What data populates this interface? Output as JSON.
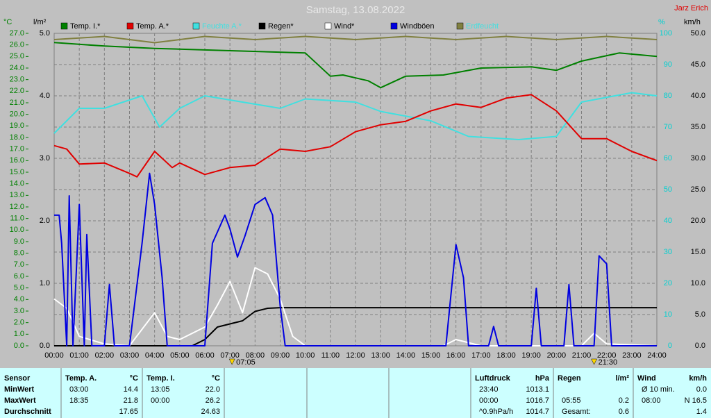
{
  "chart_data": {
    "type": "line",
    "title": "Samstag, 13.08.2022",
    "author": "Jarz Erich",
    "xlim": [
      0,
      24
    ],
    "xticks": [
      {
        "value": 0,
        "label": "00:00"
      },
      {
        "value": 1,
        "label": "01:00"
      },
      {
        "value": 2,
        "label": "02:00"
      },
      {
        "value": 3,
        "label": "03:00"
      },
      {
        "value": 4,
        "label": "04:00"
      },
      {
        "value": 5,
        "label": "05:00"
      },
      {
        "value": 6,
        "label": "06:00"
      },
      {
        "value": 7,
        "label": "07:00"
      },
      {
        "value": 8,
        "label": "08:00"
      },
      {
        "value": 9,
        "label": "09:00"
      },
      {
        "value": 10,
        "label": "10:00"
      },
      {
        "value": 11,
        "label": "11:00"
      },
      {
        "value": 12,
        "label": "12:00"
      },
      {
        "value": 13,
        "label": "13:00"
      },
      {
        "value": 14,
        "label": "14:00"
      },
      {
        "value": 15,
        "label": "15:00"
      },
      {
        "value": 16,
        "label": "16:00"
      },
      {
        "value": 17,
        "label": "17:00"
      },
      {
        "value": 18,
        "label": "18:00"
      },
      {
        "value": 19,
        "label": "19:00"
      },
      {
        "value": 20,
        "label": "20:00"
      },
      {
        "value": 21,
        "label": "21:00"
      },
      {
        "value": 22,
        "label": "22:00"
      },
      {
        "value": 23,
        "label": "23:00"
      },
      {
        "value": 24,
        "label": "24:00"
      }
    ],
    "grid": true,
    "axes": {
      "temp": {
        "unit": "°C",
        "side": "left",
        "color": "#008000",
        "lim": [
          0,
          27
        ],
        "ticks": [
          {
            "value": 0,
            "label": "0.0"
          },
          {
            "value": 1,
            "label": "1.0"
          },
          {
            "value": 2,
            "label": "2.0"
          },
          {
            "value": 3,
            "label": "3.0"
          },
          {
            "value": 4,
            "label": "4.0"
          },
          {
            "value": 5,
            "label": "5.0"
          },
          {
            "value": 6,
            "label": "6.0"
          },
          {
            "value": 7,
            "label": "7.0"
          },
          {
            "value": 8,
            "label": "8.0"
          },
          {
            "value": 9,
            "label": "9.0"
          },
          {
            "value": 10,
            "label": "10.0"
          },
          {
            "value": 11,
            "label": "11.0"
          },
          {
            "value": 12,
            "label": "12.0"
          },
          {
            "value": 13,
            "label": "13.0"
          },
          {
            "value": 14,
            "label": "14.0"
          },
          {
            "value": 15,
            "label": "15.0"
          },
          {
            "value": 16,
            "label": "16.0"
          },
          {
            "value": 17,
            "label": "17.0"
          },
          {
            "value": 18,
            "label": "18.0"
          },
          {
            "value": 19,
            "label": "19.0"
          },
          {
            "value": 20,
            "label": "20.0"
          },
          {
            "value": 21,
            "label": "21.0"
          },
          {
            "value": 22,
            "label": "22.0"
          },
          {
            "value": 23,
            "label": "23.0"
          },
          {
            "value": 24,
            "label": "24.0"
          },
          {
            "value": 25,
            "label": "25.0"
          },
          {
            "value": 26,
            "label": "26.0"
          },
          {
            "value": 27,
            "label": "27.0"
          }
        ]
      },
      "rain": {
        "unit": "l/m²",
        "side": "left",
        "color": "#000000",
        "lim": [
          0,
          5
        ],
        "ticks": [
          {
            "value": 0,
            "label": "0.0"
          },
          {
            "value": 1,
            "label": "1.0"
          },
          {
            "value": 2,
            "label": "2.0"
          },
          {
            "value": 3,
            "label": "3.0"
          },
          {
            "value": 4,
            "label": "4.0"
          },
          {
            "value": 5,
            "label": "5.0"
          }
        ]
      },
      "humidity": {
        "unit": "%",
        "side": "right",
        "color": "#00d0d0",
        "lim": [
          0,
          100
        ],
        "ticks": [
          0,
          10,
          20,
          30,
          40,
          50,
          60,
          70,
          80,
          90,
          100
        ]
      },
      "wind": {
        "unit": "km/h",
        "side": "right",
        "color": "#000000",
        "lim": [
          0,
          50
        ],
        "ticks": [
          {
            "value": 0,
            "label": "0.0"
          },
          {
            "value": 5,
            "label": "5.0"
          },
          {
            "value": 10,
            "label": "10.0"
          },
          {
            "value": 15,
            "label": "15.0"
          },
          {
            "value": 20,
            "label": "20.0"
          },
          {
            "value": 25,
            "label": "25.0"
          },
          {
            "value": 30,
            "label": "30.0"
          },
          {
            "value": 35,
            "label": "35.0"
          },
          {
            "value": 40,
            "label": "40.0"
          },
          {
            "value": 45,
            "label": "45.0"
          },
          {
            "value": 50,
            "label": "50.0"
          }
        ]
      }
    },
    "series": [
      {
        "name": "Temp. I.*",
        "color": "#008000",
        "axis": "temp",
        "x": [
          0,
          2,
          4,
          7,
          10,
          11,
          11.5,
          12.5,
          13,
          14,
          15.5,
          17,
          19,
          20,
          21,
          22.5,
          24
        ],
        "values": [
          26.2,
          25.9,
          25.7,
          25.5,
          25.3,
          23.3,
          23.4,
          22.9,
          22.3,
          23.3,
          23.4,
          24.0,
          24.1,
          23.8,
          24.6,
          25.3,
          25.0
        ]
      },
      {
        "name": "Temp. A.*",
        "color": "#e00000",
        "axis": "temp",
        "x": [
          0,
          0.5,
          1,
          2,
          3,
          3.3,
          4,
          4.7,
          5,
          6,
          7,
          8,
          9,
          10,
          11,
          12,
          13,
          14,
          15,
          16,
          17,
          18,
          19,
          20,
          21,
          22,
          23,
          24
        ],
        "values": [
          17.3,
          17.0,
          15.7,
          15.8,
          14.9,
          14.6,
          16.8,
          15.4,
          15.8,
          14.8,
          15.4,
          15.6,
          17.0,
          16.8,
          17.2,
          18.5,
          19.1,
          19.4,
          20.3,
          20.9,
          20.6,
          21.4,
          21.7,
          20.3,
          17.9,
          17.9,
          16.8,
          16.0
        ]
      },
      {
        "name": "Feuchte A.*",
        "color": "#40e0e0",
        "axis": "humidity",
        "legend_text_color": "#40e0e0",
        "x": [
          0,
          1,
          2,
          3.5,
          4.2,
          5,
          6,
          9,
          10,
          12,
          13,
          15,
          16.5,
          18.5,
          20,
          21,
          23,
          24
        ],
        "values": [
          68,
          76,
          76,
          80,
          70,
          76,
          80,
          76,
          79,
          78,
          75,
          72,
          67,
          66,
          67,
          78,
          81,
          80
        ]
      },
      {
        "name": "Regen*",
        "color": "#000000",
        "axis": "rain",
        "x": [
          0,
          5.5,
          6,
          6.5,
          7,
          7.5,
          8,
          8.5,
          9,
          24
        ],
        "values": [
          0,
          0,
          0.1,
          0.3,
          0.35,
          0.4,
          0.55,
          0.6,
          0.61,
          0.61
        ]
      },
      {
        "name": "Wind*",
        "color": "#ffffff",
        "axis": "wind",
        "x": [
          0,
          0.5,
          1,
          2,
          3,
          4,
          4.5,
          5,
          6,
          6.5,
          7,
          7.5,
          8,
          8.5,
          9,
          9.5,
          10,
          15.5,
          16,
          17,
          21,
          21.5,
          22,
          24
        ],
        "values": [
          7.5,
          6,
          1.5,
          0.3,
          0,
          5.3,
          1.5,
          1,
          3,
          6.5,
          10.3,
          5.3,
          12.5,
          11.5,
          7.5,
          1.5,
          0,
          0,
          1,
          0,
          0,
          2,
          0.3,
          0
        ]
      },
      {
        "name": "Windböen",
        "color": "#0000e0",
        "axis": "wind",
        "x": [
          0,
          0.2,
          0.3,
          0.5,
          0.6,
          0.75,
          1.0,
          1.2,
          1.3,
          1.5,
          2,
          2.2,
          2.4,
          3,
          3.5,
          3.8,
          4.0,
          4.3,
          4.5,
          6,
          6.3,
          6.8,
          7,
          7.3,
          7.6,
          8,
          8.4,
          8.7,
          9,
          9.2,
          15.6,
          15.8,
          16,
          16.3,
          16.5,
          17.3,
          17.5,
          17.7,
          19,
          19.2,
          19.4,
          20.3,
          20.5,
          20.7,
          21.5,
          21.7,
          22,
          22.2,
          24
        ],
        "values": [
          20.9,
          20.9,
          16.4,
          0,
          24,
          0,
          22.6,
          0,
          17.8,
          0,
          0,
          9.8,
          0,
          0,
          16.4,
          27.6,
          22.6,
          10.9,
          0,
          0,
          16.4,
          20.9,
          18.7,
          14.2,
          17.6,
          22.6,
          23.7,
          20.9,
          6.4,
          0,
          0,
          8.1,
          16.2,
          10.9,
          0,
          0,
          3.1,
          0,
          0,
          9.2,
          0,
          0,
          9.8,
          0,
          0,
          14.4,
          13.1,
          0,
          0
        ]
      },
      {
        "name": "Erdfeucht",
        "color": "#808040",
        "axis": "humidity",
        "legend_text_color": "#40e0e0",
        "x": [
          0,
          2,
          4,
          6,
          8,
          10,
          12,
          14,
          16,
          18,
          20,
          22,
          24
        ],
        "values": [
          98,
          99,
          97,
          99,
          98,
          99,
          98,
          99,
          98,
          99,
          98,
          99,
          98
        ]
      }
    ],
    "markers": [
      {
        "value": 7.0833,
        "label": "07:05"
      },
      {
        "value": 21.5,
        "label": "21:30"
      }
    ]
  },
  "table": {
    "blocks": [
      {
        "header": [
          "Sensor"
        ],
        "rows": [
          [
            "MinWert"
          ],
          [
            "MaxWert"
          ],
          [
            "Durchschnitt"
          ]
        ]
      },
      {
        "header": [
          "Temp. A.",
          "°C"
        ],
        "rows": [
          [
            "03:00",
            "14.4"
          ],
          [
            "18:35",
            "21.8"
          ],
          [
            null,
            "17.65"
          ]
        ]
      },
      {
        "header": [
          "Temp. I.",
          "°C"
        ],
        "rows": [
          [
            "13:05",
            "22.0"
          ],
          [
            "00:00",
            "26.2"
          ],
          [
            null,
            "24.63"
          ]
        ]
      },
      {
        "header": [
          "Luftdruck",
          "hPa"
        ],
        "rows": [
          [
            "23:40",
            "1013.1"
          ],
          [
            "00:00",
            "1016.7"
          ],
          [
            "^0.9hPa/h",
            "1014.7"
          ]
        ]
      },
      {
        "header": [
          "Regen",
          "l/m²"
        ],
        "rows": [
          null,
          [
            "05:55",
            "0.2"
          ],
          [
            "Gesamt:",
            "0.6"
          ]
        ]
      },
      {
        "header": [
          "Wind",
          "km/h"
        ],
        "rows": [
          [
            "Ø 10 min.",
            "0.0"
          ],
          [
            "08:00",
            "N 16.5"
          ],
          [
            null,
            "1.4"
          ]
        ]
      }
    ]
  }
}
